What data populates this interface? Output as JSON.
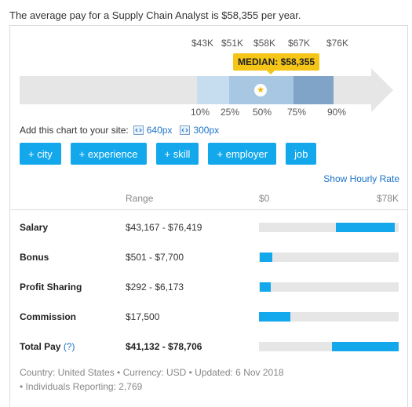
{
  "headline": "The average pay for a Supply Chain Analyst is $58,355 per year.",
  "colors": {
    "accent": "#13a8ec",
    "median": "#f5c518",
    "link": "#1a73c8",
    "track": "#e6e6e6"
  },
  "chart": {
    "amounts": [
      "$43K",
      "$51K",
      "$58K",
      "$67K",
      "$76K"
    ],
    "median_label": "MEDIAN: $58,355",
    "median_icon": "star-icon",
    "percentiles": [
      "10%",
      "25%",
      "50%",
      "75%",
      "90%"
    ]
  },
  "embed": {
    "label": "Add this chart to your site:",
    "link_640": "640px",
    "link_300": "300px",
    "icon": "embed-code-icon"
  },
  "buttons": [
    "+ city",
    "+ experience",
    "+ skill",
    "+ employer",
    "job"
  ],
  "hourly_link": "Show Hourly Rate",
  "table": {
    "header_range": "Range",
    "scale_min": "$0",
    "scale_max": "$78K",
    "scale_max_value": 78706,
    "rows": [
      {
        "label": "Salary",
        "help": "",
        "range": "$43,167 - $76,419",
        "low": 43167,
        "high": 76419
      },
      {
        "label": "Bonus",
        "help": "",
        "range": "$501 - $7,700",
        "low": 501,
        "high": 7700
      },
      {
        "label": "Profit Sharing",
        "help": "",
        "range": "$292 - $6,173",
        "low": 292,
        "high": 6173
      },
      {
        "label": "Commission",
        "help": "",
        "range": "$17,500",
        "low": 0,
        "high": 17500
      },
      {
        "label": "Total Pay",
        "help": "(?)",
        "range": "$41,132 - $78,706",
        "low": 41132,
        "high": 78706
      }
    ]
  },
  "footer": {
    "line1": "Country: United States • Currency: USD • Updated: 6 Nov 2018",
    "line2": "• Individuals Reporting: 2,769"
  }
}
